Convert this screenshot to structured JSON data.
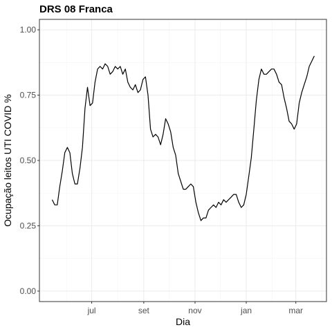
{
  "chart_data": {
    "type": "line",
    "title": "DRS 08 Franca",
    "xlabel": "Dia",
    "ylabel": "Ocupação leitos UTI COVID %",
    "x_tick_labels": [
      "jul",
      "set",
      "nov",
      "jan",
      "mar"
    ],
    "y_tick_labels": [
      "0.00",
      "0.25",
      "0.50",
      "0.75",
      "1.00"
    ],
    "y_ticks": [
      0.0,
      0.25,
      0.5,
      0.75,
      1.0
    ],
    "ylim": [
      -0.04,
      1.04
    ],
    "grid": true,
    "legend": "none",
    "line_color": "#000000",
    "series": [
      {
        "x": [
          "2020-05-15",
          "2020-05-18",
          "2020-05-21",
          "2020-05-24",
          "2020-05-27",
          "2020-05-30",
          "2020-06-02",
          "2020-06-05",
          "2020-06-08",
          "2020-06-11",
          "2020-06-14",
          "2020-06-17",
          "2020-06-20",
          "2020-06-23",
          "2020-06-26",
          "2020-06-29",
          "2020-07-02",
          "2020-07-05",
          "2020-07-08",
          "2020-07-11",
          "2020-07-14",
          "2020-07-17",
          "2020-07-20",
          "2020-07-23",
          "2020-07-26",
          "2020-07-29",
          "2020-08-01",
          "2020-08-04",
          "2020-08-07",
          "2020-08-10",
          "2020-08-13",
          "2020-08-16",
          "2020-08-19",
          "2020-08-22",
          "2020-08-25",
          "2020-08-28",
          "2020-08-31",
          "2020-09-03",
          "2020-09-06",
          "2020-09-09",
          "2020-09-12",
          "2020-09-15",
          "2020-09-18",
          "2020-09-21",
          "2020-09-24",
          "2020-09-27",
          "2020-09-30",
          "2020-10-03",
          "2020-10-06",
          "2020-10-09",
          "2020-10-12",
          "2020-10-15",
          "2020-10-18",
          "2020-10-21",
          "2020-10-24",
          "2020-10-27",
          "2020-10-30",
          "2020-11-02",
          "2020-11-05",
          "2020-11-08",
          "2020-11-11",
          "2020-11-14",
          "2020-11-17",
          "2020-11-20",
          "2020-11-23",
          "2020-11-26",
          "2020-11-29",
          "2020-12-02",
          "2020-12-05",
          "2020-12-08",
          "2020-12-11",
          "2020-12-14",
          "2020-12-17",
          "2020-12-20",
          "2020-12-23",
          "2020-12-26",
          "2020-12-29",
          "2021-01-01",
          "2021-01-04",
          "2021-01-07",
          "2021-01-10",
          "2021-01-13",
          "2021-01-16",
          "2021-01-19",
          "2021-01-22",
          "2021-01-25",
          "2021-01-28",
          "2021-01-31",
          "2021-02-03",
          "2021-02-06",
          "2021-02-09",
          "2021-02-12",
          "2021-02-15",
          "2021-02-18",
          "2021-02-21",
          "2021-02-24",
          "2021-02-27",
          "2021-03-02",
          "2021-03-05",
          "2021-03-08",
          "2021-03-11",
          "2021-03-14",
          "2021-03-17",
          "2021-03-20",
          "2021-03-23"
        ],
        "values": [
          0.35,
          0.33,
          0.33,
          0.4,
          0.46,
          0.53,
          0.55,
          0.53,
          0.45,
          0.41,
          0.41,
          0.47,
          0.55,
          0.7,
          0.78,
          0.71,
          0.72,
          0.8,
          0.85,
          0.86,
          0.85,
          0.87,
          0.86,
          0.83,
          0.84,
          0.86,
          0.85,
          0.86,
          0.83,
          0.85,
          0.8,
          0.78,
          0.77,
          0.79,
          0.76,
          0.77,
          0.81,
          0.82,
          0.75,
          0.62,
          0.59,
          0.6,
          0.59,
          0.56,
          0.6,
          0.66,
          0.64,
          0.61,
          0.55,
          0.52,
          0.45,
          0.42,
          0.39,
          0.39,
          0.4,
          0.41,
          0.4,
          0.34,
          0.3,
          0.27,
          0.28,
          0.28,
          0.31,
          0.32,
          0.33,
          0.32,
          0.34,
          0.33,
          0.35,
          0.34,
          0.35,
          0.36,
          0.37,
          0.37,
          0.34,
          0.32,
          0.33,
          0.37,
          0.44,
          0.51,
          0.62,
          0.73,
          0.81,
          0.85,
          0.83,
          0.83,
          0.84,
          0.85,
          0.85,
          0.83,
          0.8,
          0.79,
          0.74,
          0.7,
          0.65,
          0.64,
          0.62,
          0.64,
          0.72,
          0.76,
          0.79,
          0.82,
          0.86,
          0.88,
          0.9
        ]
      }
    ]
  }
}
